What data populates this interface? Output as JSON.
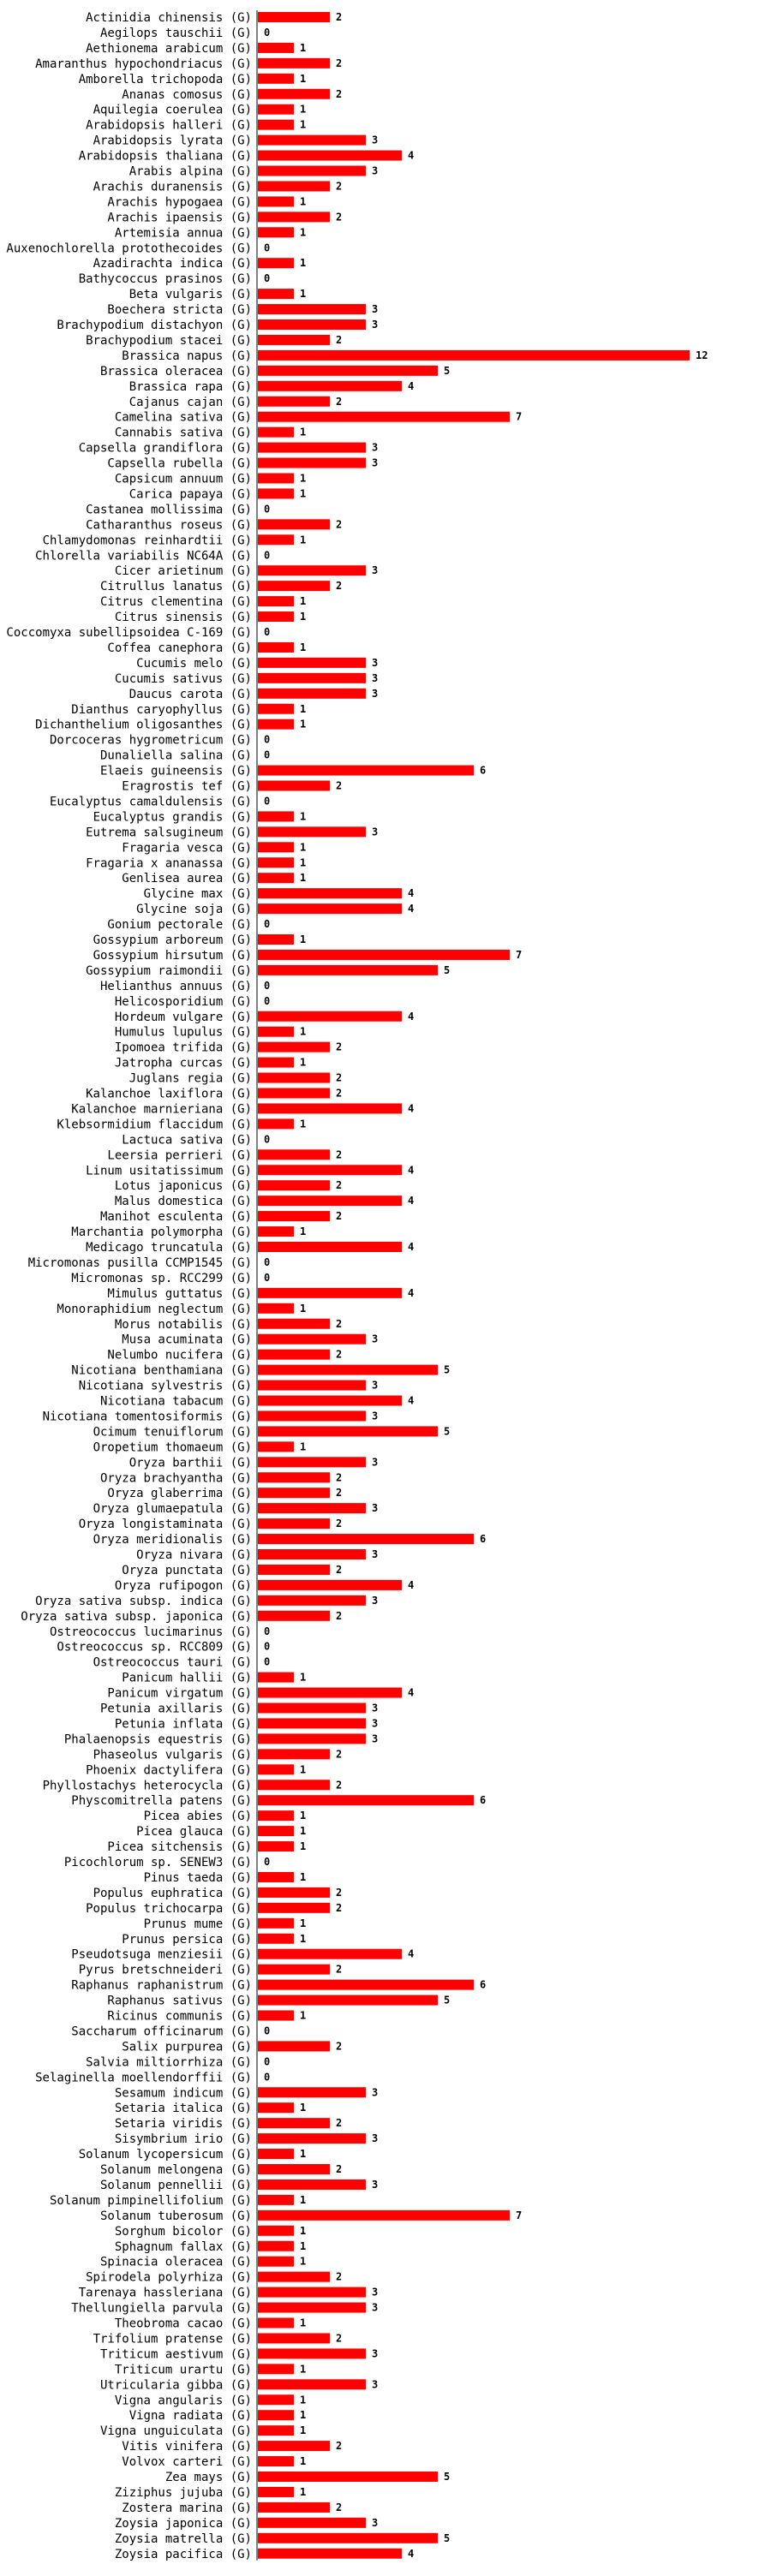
{
  "chart_data": {
    "type": "bar",
    "orientation": "horizontal",
    "color": "#ff0000",
    "title": "",
    "xlabel": "",
    "ylabel": "",
    "xlim": [
      0,
      12
    ],
    "categories": [
      "Actinidia chinensis (G)",
      "Aegilops tauschii (G)",
      "Aethionema arabicum (G)",
      "Amaranthus hypochondriacus (G)",
      "Amborella trichopoda (G)",
      "Ananas comosus (G)",
      "Aquilegia coerulea (G)",
      "Arabidopsis halleri (G)",
      "Arabidopsis lyrata (G)",
      "Arabidopsis thaliana (G)",
      "Arabis alpina (G)",
      "Arachis duranensis (G)",
      "Arachis hypogaea (G)",
      "Arachis ipaensis (G)",
      "Artemisia annua (G)",
      "Auxenochlorella protothecoides (G)",
      "Azadirachta indica (G)",
      "Bathycoccus prasinos (G)",
      "Beta vulgaris (G)",
      "Boechera stricta (G)",
      "Brachypodium distachyon (G)",
      "Brachypodium stacei (G)",
      "Brassica napus (G)",
      "Brassica oleracea (G)",
      "Brassica rapa (G)",
      "Cajanus cajan (G)",
      "Camelina sativa (G)",
      "Cannabis sativa (G)",
      "Capsella grandiflora (G)",
      "Capsella rubella (G)",
      "Capsicum annuum (G)",
      "Carica papaya (G)",
      "Castanea mollissima (G)",
      "Catharanthus roseus (G)",
      "Chlamydomonas reinhardtii (G)",
      "Chlorella variabilis NC64A (G)",
      "Cicer arietinum (G)",
      "Citrullus lanatus (G)",
      "Citrus clementina (G)",
      "Citrus sinensis (G)",
      "Coccomyxa subellipsoidea C-169 (G)",
      "Coffea canephora (G)",
      "Cucumis melo (G)",
      "Cucumis sativus (G)",
      "Daucus carota (G)",
      "Dianthus caryophyllus (G)",
      "Dichanthelium oligosanthes (G)",
      "Dorcoceras hygrometricum (G)",
      "Dunaliella salina (G)",
      "Elaeis guineensis (G)",
      "Eragrostis tef (G)",
      "Eucalyptus camaldulensis (G)",
      "Eucalyptus grandis (G)",
      "Eutrema salsugineum (G)",
      "Fragaria vesca (G)",
      "Fragaria x ananassa (G)",
      "Genlisea aurea (G)",
      "Glycine max (G)",
      "Glycine soja (G)",
      "Gonium pectorale (G)",
      "Gossypium arboreum (G)",
      "Gossypium hirsutum (G)",
      "Gossypium raimondii (G)",
      "Helianthus annuus (G)",
      "Helicosporidium (G)",
      "Hordeum vulgare (G)",
      "Humulus lupulus (G)",
      "Ipomoea trifida (G)",
      "Jatropha curcas (G)",
      "Juglans regia (G)",
      "Kalanchoe laxiflora (G)",
      "Kalanchoe marnieriana (G)",
      "Klebsormidium flaccidum (G)",
      "Lactuca sativa (G)",
      "Leersia perrieri (G)",
      "Linum usitatissimum (G)",
      "Lotus japonicus (G)",
      "Malus domestica (G)",
      "Manihot esculenta (G)",
      "Marchantia polymorpha (G)",
      "Medicago truncatula (G)",
      "Micromonas pusilla CCMP1545 (G)",
      "Micromonas sp. RCC299 (G)",
      "Mimulus guttatus (G)",
      "Monoraphidium neglectum (G)",
      "Morus notabilis (G)",
      "Musa acuminata (G)",
      "Nelumbo nucifera (G)",
      "Nicotiana benthamiana (G)",
      "Nicotiana sylvestris (G)",
      "Nicotiana tabacum (G)",
      "Nicotiana tomentosiformis (G)",
      "Ocimum tenuiflorum (G)",
      "Oropetium thomaeum (G)",
      "Oryza barthii (G)",
      "Oryza brachyantha (G)",
      "Oryza glaberrima (G)",
      "Oryza glumaepatula (G)",
      "Oryza longistaminata (G)",
      "Oryza meridionalis (G)",
      "Oryza nivara (G)",
      "Oryza punctata (G)",
      "Oryza rufipogon (G)",
      "Oryza sativa subsp. indica (G)",
      "Oryza sativa subsp. japonica (G)",
      "Ostreococcus lucimarinus (G)",
      "Ostreococcus sp. RCC809 (G)",
      "Ostreococcus tauri (G)",
      "Panicum hallii (G)",
      "Panicum virgatum (G)",
      "Petunia axillaris (G)",
      "Petunia inflata (G)",
      "Phalaenopsis equestris (G)",
      "Phaseolus vulgaris (G)",
      "Phoenix dactylifera (G)",
      "Phyllostachys heterocycla (G)",
      "Physcomitrella patens (G)",
      "Picea abies (G)",
      "Picea glauca (G)",
      "Picea sitchensis (G)",
      "Picochlorum sp. SENEW3 (G)",
      "Pinus taeda (G)",
      "Populus euphratica (G)",
      "Populus trichocarpa (G)",
      "Prunus mume (G)",
      "Prunus persica (G)",
      "Pseudotsuga menziesii (G)",
      "Pyrus bretschneideri (G)",
      "Raphanus raphanistrum (G)",
      "Raphanus sativus (G)",
      "Ricinus communis (G)",
      "Saccharum officinarum (G)",
      "Salix purpurea (G)",
      "Salvia miltiorrhiza (G)",
      "Selaginella moellendorffii (G)",
      "Sesamum indicum (G)",
      "Setaria italica (G)",
      "Setaria viridis (G)",
      "Sisymbrium irio (G)",
      "Solanum lycopersicum (G)",
      "Solanum melongena (G)",
      "Solanum pennellii (G)",
      "Solanum pimpinellifolium (G)",
      "Solanum tuberosum (G)",
      "Sorghum bicolor (G)",
      "Sphagnum fallax (G)",
      "Spinacia oleracea (G)",
      "Spirodela polyrhiza (G)",
      "Tarenaya hassleriana (G)",
      "Thellungiella parvula (G)",
      "Theobroma cacao (G)",
      "Trifolium pratense (G)",
      "Triticum aestivum (G)",
      "Triticum urartu (G)",
      "Utricularia gibba (G)",
      "Vigna angularis (G)",
      "Vigna radiata (G)",
      "Vigna unguiculata (G)",
      "Vitis vinifera (G)",
      "Volvox carteri (G)",
      "Zea mays (G)",
      "Ziziphus jujuba (G)",
      "Zostera marina (G)",
      "Zoysia japonica (G)",
      "Zoysia matrella (G)",
      "Zoysia pacifica (G)"
    ],
    "values": [
      2,
      0,
      1,
      2,
      1,
      2,
      1,
      1,
      3,
      4,
      3,
      2,
      1,
      2,
      1,
      0,
      1,
      0,
      1,
      3,
      3,
      2,
      12,
      5,
      4,
      2,
      7,
      1,
      3,
      3,
      1,
      1,
      0,
      2,
      1,
      0,
      3,
      2,
      1,
      1,
      0,
      1,
      3,
      3,
      3,
      1,
      1,
      0,
      0,
      6,
      2,
      0,
      1,
      3,
      1,
      1,
      1,
      4,
      4,
      0,
      1,
      7,
      5,
      0,
      0,
      4,
      1,
      2,
      1,
      2,
      2,
      4,
      1,
      0,
      2,
      4,
      2,
      4,
      2,
      1,
      4,
      0,
      0,
      4,
      1,
      2,
      3,
      2,
      5,
      3,
      4,
      3,
      5,
      1,
      3,
      2,
      2,
      3,
      2,
      6,
      3,
      2,
      4,
      3,
      2,
      0,
      0,
      0,
      1,
      4,
      3,
      3,
      3,
      2,
      1,
      2,
      6,
      1,
      1,
      1,
      0,
      1,
      2,
      2,
      1,
      1,
      4,
      2,
      6,
      5,
      1,
      0,
      2,
      0,
      0,
      3,
      1,
      2,
      3,
      1,
      2,
      3,
      1,
      7,
      1,
      1,
      1,
      2,
      3,
      3,
      1,
      2,
      3,
      1,
      3,
      1,
      1,
      1,
      2,
      1,
      5,
      1,
      2,
      3,
      5,
      4
    ]
  }
}
